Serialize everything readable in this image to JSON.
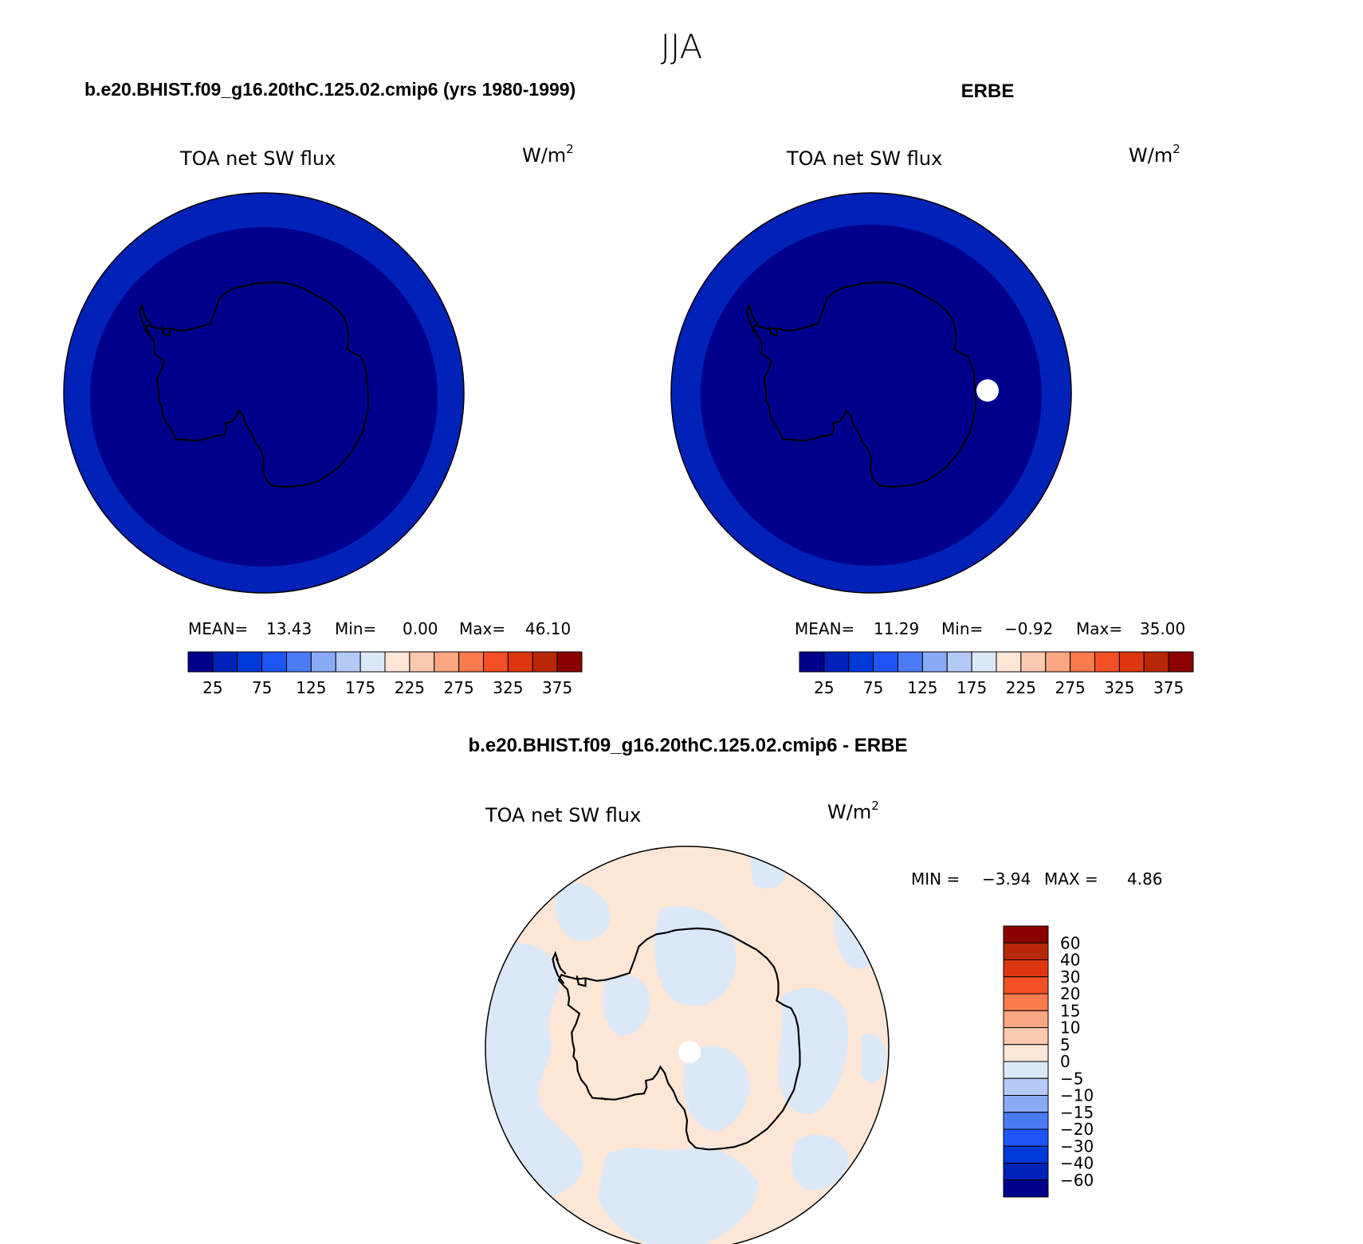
{
  "figure": {
    "season": "JJA"
  },
  "panels": [
    {
      "id": "model",
      "header": "b.e20.BHIST.f09_g16.20thC.125.02.cmip6 (yrs 1980-1999)",
      "variable": "TOA net SW flux",
      "units": "W/m",
      "units_exp": "2",
      "stats": {
        "mean_label": "MEAN=",
        "mean": "13.43",
        "min_label": "Min=",
        "min": "0.00",
        "max_label": "Max=",
        "max": "46.10"
      },
      "has_pole_hole": false
    },
    {
      "id": "obs",
      "header": "ERBE",
      "variable": "TOA net SW flux",
      "units": "W/m",
      "units_exp": "2",
      "stats": {
        "mean_label": "MEAN=",
        "mean": "11.29",
        "min_label": "Min=",
        "min": "−0.92",
        "max_label": "Max=",
        "max": "35.00"
      },
      "has_pole_hole": true
    },
    {
      "id": "diff",
      "header": "b.e20.BHIST.f09_g16.20thC.125.02.cmip6 - ERBE",
      "variable": "TOA net SW flux",
      "units": "W/m",
      "units_exp": "2",
      "stats": {
        "min_label": "MIN =",
        "min": "−3.94",
        "max_label": "MAX =",
        "max": "4.86"
      },
      "has_pole_hole": true
    }
  ],
  "colorbar_abs": {
    "colors": [
      "#00008c",
      "#0022b8",
      "#0039d9",
      "#1f55f5",
      "#4a7af5",
      "#8aaaf5",
      "#b5c9f7",
      "#dbe8f7",
      "#fde6d6",
      "#fcc9b0",
      "#fba682",
      "#f97b4e",
      "#f24f25",
      "#de3610",
      "#b82707",
      "#8c0000"
    ],
    "labels": [
      "25",
      "75",
      "125",
      "175",
      "225",
      "275",
      "325",
      "375"
    ]
  },
  "colorbar_diff": {
    "colors_top_to_bottom": [
      "#8c0000",
      "#b82707",
      "#de3610",
      "#f24f25",
      "#f97b4e",
      "#fba682",
      "#fcc9b0",
      "#fde6d6",
      "#dbe8f7",
      "#b5c9f7",
      "#8aaaf5",
      "#4a7af5",
      "#1f55f5",
      "#0039d9",
      "#0022b8",
      "#00008c"
    ],
    "labels_top_to_bottom": [
      "60",
      "40",
      "30",
      "20",
      "15",
      "10",
      "5",
      "0",
      "−5",
      "−10",
      "−15",
      "−20",
      "−30",
      "−40",
      "−60"
    ]
  },
  "map_colors": {
    "outer_ring": "#0022b8",
    "interior": "#00008c",
    "diff_positive": "#fde6d6",
    "diff_negative": "#dbe8f7"
  }
}
